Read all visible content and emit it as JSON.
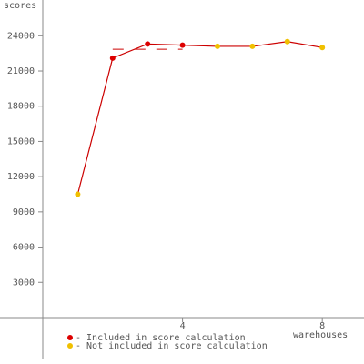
{
  "chart_data": {
    "type": "line",
    "y_label": "scores",
    "x_label": "warehouses",
    "x": [
      1,
      2,
      3,
      4,
      5,
      6,
      7,
      8
    ],
    "series": [
      {
        "name": "scores",
        "color": "#cc0000",
        "values": [
          10500,
          22100,
          23300,
          23200,
          23100,
          23100,
          23500,
          23000
        ],
        "point_colors": [
          "#f0c000",
          "#dd0000",
          "#dd0000",
          "#dd0000",
          "#f0c000",
          "#f0c000",
          "#f0c000",
          "#f0c000"
        ]
      }
    ],
    "reference_line": {
      "value": 22850,
      "x": [
        2,
        4
      ],
      "color": "#cc0000"
    },
    "legend": [
      {
        "name": "- Included in score calculation",
        "color": "#dd0000"
      },
      {
        "name": "- Not included in score calculation",
        "color": "#f0c000"
      }
    ],
    "xlim": [
      -1.224,
      9.193
    ],
    "ylim": [
      -3955,
      27047
    ],
    "xticks": [
      4,
      8
    ],
    "yticks": [
      3000,
      6000,
      9000,
      12000,
      15000,
      18000,
      21000,
      24000
    ]
  }
}
